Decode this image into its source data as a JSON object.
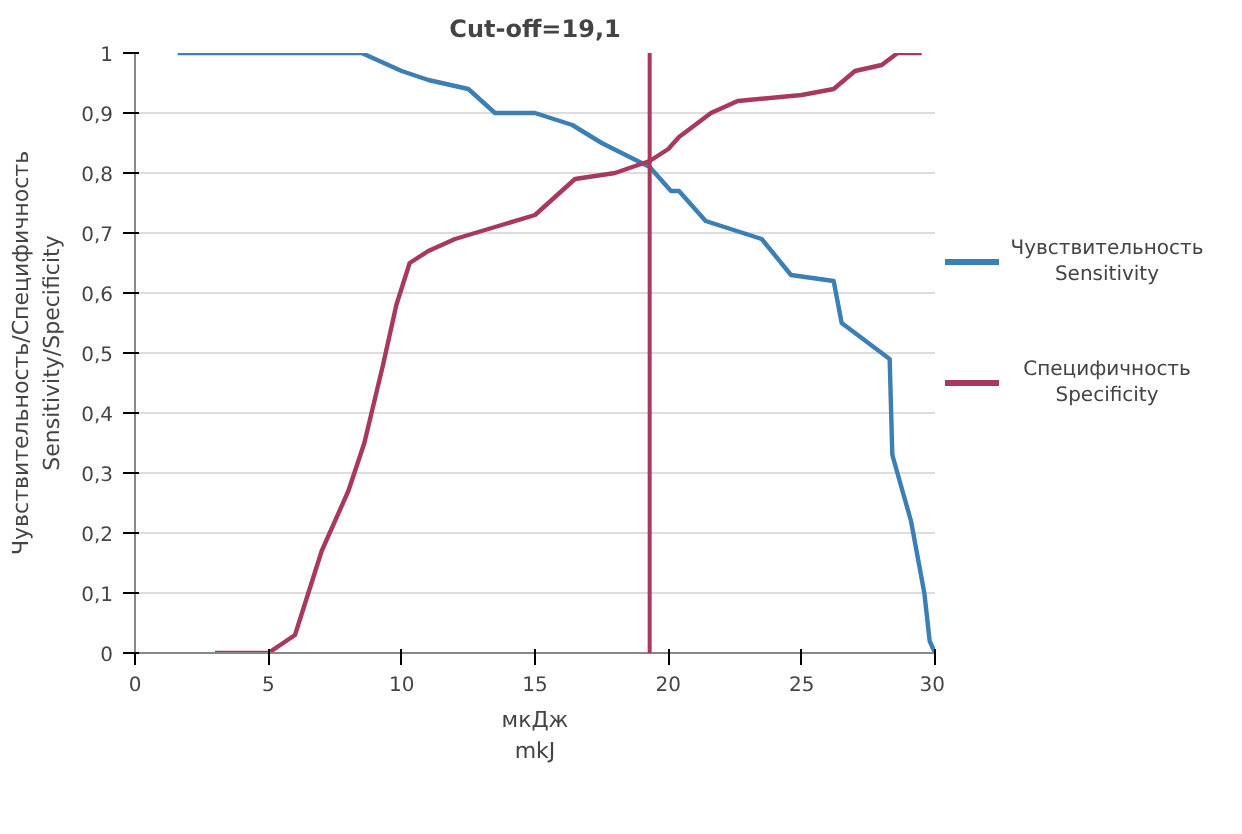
{
  "chart_data": {
    "type": "line",
    "title": "Cut-off=19,1",
    "xlabel": "мкДж\nmkJ",
    "ylabel": "Чувствительность/Специфичность\nSensitivity/Specificity",
    "xlim": [
      0,
      30
    ],
    "xticks": [
      0,
      5,
      10,
      15,
      20,
      25,
      30
    ],
    "ylim": [
      0,
      1
    ],
    "yticks": [
      {
        "value": 0,
        "label": "0"
      },
      {
        "value": 0.1,
        "label": "0,1"
      },
      {
        "value": 0.2,
        "label": "0,2"
      },
      {
        "value": 0.3,
        "label": "0,3"
      },
      {
        "value": 0.4,
        "label": "0,4"
      },
      {
        "value": 0.5,
        "label": "0,5"
      },
      {
        "value": 0.6,
        "label": "0,6"
      },
      {
        "value": 0.7,
        "label": "0,7"
      },
      {
        "value": 0.8,
        "label": "0,8"
      },
      {
        "value": 0.9,
        "label": "0,9"
      },
      {
        "value": 1,
        "label": "1"
      }
    ],
    "grid": "y",
    "legend": "right",
    "marker": "none",
    "line_style": "solid",
    "ref_lines": [
      {
        "axis": "x",
        "value": 19.3,
        "color": "#a8385e"
      }
    ],
    "series": [
      {
        "name": "Чувствительность\nSensitivity",
        "color": "#3b7fb5",
        "x": [
          1.6,
          8.5,
          10,
          11,
          12.5,
          13.5,
          15,
          16.4,
          17.5,
          19.3,
          20.1,
          20.4,
          21.4,
          23.5,
          24.6,
          26.2,
          26.5,
          28.3,
          28.4,
          29.1,
          29.6,
          29.8,
          30
        ],
        "values": [
          1,
          1,
          0.97,
          0.955,
          0.94,
          0.9,
          0.9,
          0.88,
          0.85,
          0.81,
          0.77,
          0.77,
          0.72,
          0.69,
          0.63,
          0.62,
          0.55,
          0.49,
          0.33,
          0.22,
          0.1,
          0.02,
          0
        ]
      },
      {
        "name": "Специфичность\nSpecificity",
        "color": "#a8385e",
        "x": [
          3,
          5,
          6,
          7,
          8,
          8.6,
          9.3,
          9.8,
          10.3,
          11,
          12,
          13.5,
          15,
          16.5,
          18,
          19.3,
          20,
          20.4,
          21,
          21.6,
          22.6,
          25,
          26.2,
          27,
          28,
          28.6,
          29.5
        ],
        "values": [
          0,
          0,
          0.03,
          0.17,
          0.27,
          0.35,
          0.48,
          0.58,
          0.65,
          0.67,
          0.69,
          0.71,
          0.73,
          0.79,
          0.8,
          0.82,
          0.84,
          0.86,
          0.88,
          0.9,
          0.92,
          0.93,
          0.94,
          0.97,
          0.98,
          1,
          1
        ]
      }
    ]
  }
}
